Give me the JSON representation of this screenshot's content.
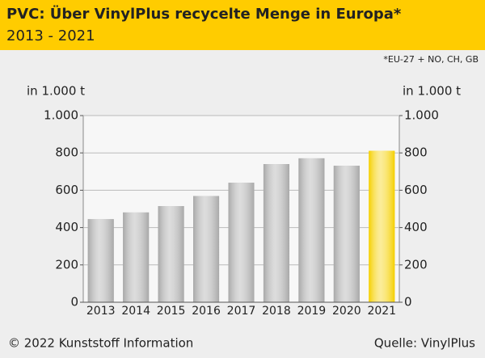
{
  "chart_data": {
    "type": "bar",
    "title": "PVC: Über VinylPlus recycelte Menge in Europa*",
    "subtitle": "2013 - 2021",
    "note": "*EU-27 + NO, CH, GB",
    "y_label": "in 1.000 t",
    "y2_label": "in 1.000 t",
    "copyright": "© 2022 Kunststoff Information",
    "source": "Quelle: VinylPlus",
    "categories": [
      "2013",
      "2014",
      "2015",
      "2016",
      "2017",
      "2018",
      "2019",
      "2020",
      "2021"
    ],
    "values": [
      445,
      481,
      515,
      569,
      640,
      740,
      771,
      731,
      811
    ],
    "colors": [
      "#a8a8a8",
      "#a8a8a8",
      "#a8a8a8",
      "#a8a8a8",
      "#a8a8a8",
      "#a8a8a8",
      "#a8a8a8",
      "#a8a8a8",
      "#f5d000"
    ],
    "ylim": [
      0,
      1000
    ],
    "yticks": [
      0,
      200,
      400,
      600,
      800,
      {
        "value": 1000,
        "label": "1.000"
      }
    ],
    "y2lim": [
      0,
      1000
    ],
    "y2ticks": [
      0,
      200,
      400,
      600,
      800,
      {
        "value": 1000,
        "label": "1.000"
      }
    ],
    "grid": true
  }
}
